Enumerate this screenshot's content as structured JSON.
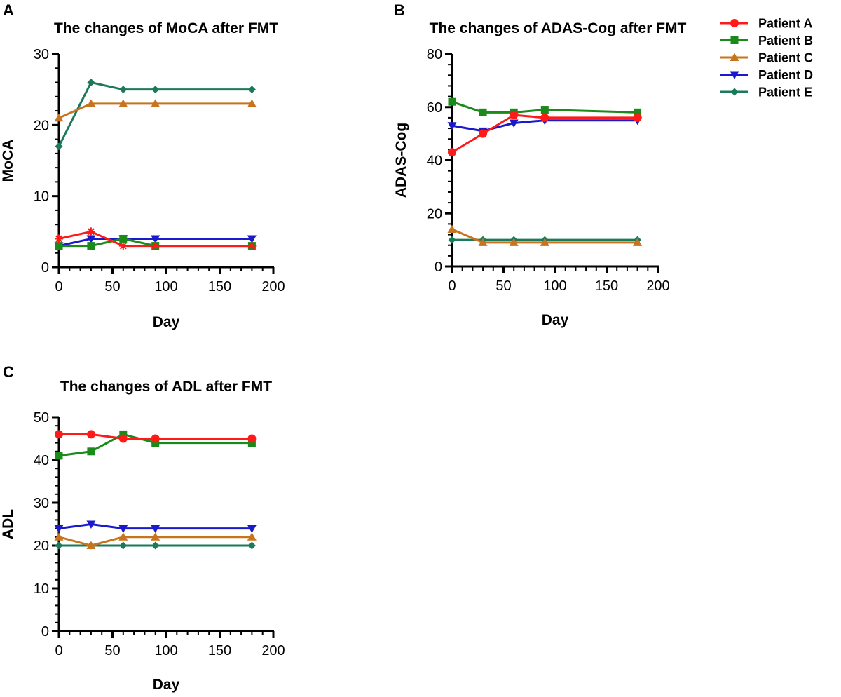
{
  "figure": {
    "legend": {
      "entries": [
        {
          "name": "Patient A",
          "color": "#ff1a1a",
          "marker": "circle"
        },
        {
          "name": "Patient B",
          "color": "#1a8a1a",
          "marker": "square"
        },
        {
          "name": "Patient C",
          "color": "#c8731e",
          "marker": "triangle-up"
        },
        {
          "name": "Patient D",
          "color": "#1a1acc",
          "marker": "triangle-down"
        },
        {
          "name": "Patient E",
          "color": "#1a7a5a",
          "marker": "diamond"
        }
      ]
    }
  },
  "chart_data": [
    {
      "panel": "A",
      "type": "line",
      "title": "The changes of MoCA after FMT",
      "xlabel": "Day",
      "ylabel": "MoCA",
      "xlim": [
        0,
        200
      ],
      "ylim": [
        0,
        30
      ],
      "xticks": [
        0,
        50,
        100,
        150,
        200
      ],
      "yticks": [
        0,
        10,
        20,
        30
      ],
      "x": [
        0,
        30,
        60,
        90,
        180
      ],
      "series": [
        {
          "name": "Patient A",
          "values": [
            4,
            5,
            3,
            3,
            3
          ],
          "marker": "asterisk"
        },
        {
          "name": "Patient B",
          "values": [
            3,
            3,
            4,
            3,
            3
          ]
        },
        {
          "name": "Patient C",
          "values": [
            21,
            23,
            23,
            23,
            23
          ]
        },
        {
          "name": "Patient D",
          "values": [
            3,
            4,
            4,
            4,
            4
          ]
        },
        {
          "name": "Patient E",
          "values": [
            17,
            26,
            25,
            25,
            25
          ]
        }
      ]
    },
    {
      "panel": "B",
      "type": "line",
      "title": "The changes of ADAS-Cog after FMT",
      "xlabel": "Day",
      "ylabel": "ADAS-Cog",
      "xlim": [
        0,
        200
      ],
      "ylim": [
        0,
        80
      ],
      "xticks": [
        0,
        50,
        100,
        150,
        200
      ],
      "yticks": [
        0,
        20,
        40,
        60,
        80
      ],
      "x": [
        0,
        30,
        60,
        90,
        180
      ],
      "series": [
        {
          "name": "Patient A",
          "values": [
            43,
            50,
            57,
            56,
            56
          ]
        },
        {
          "name": "Patient B",
          "values": [
            62,
            58,
            58,
            59,
            58
          ]
        },
        {
          "name": "Patient C",
          "values": [
            14,
            9,
            9,
            9,
            9
          ]
        },
        {
          "name": "Patient D",
          "values": [
            53,
            51,
            54,
            55,
            55
          ]
        },
        {
          "name": "Patient E",
          "values": [
            10,
            10,
            10,
            10,
            10
          ]
        }
      ]
    },
    {
      "panel": "C",
      "type": "line",
      "title": "The changes of ADL after FMT",
      "xlabel": "Day",
      "ylabel": "ADL",
      "xlim": [
        0,
        200
      ],
      "ylim": [
        0,
        50
      ],
      "xticks": [
        0,
        50,
        100,
        150,
        200
      ],
      "yticks": [
        0,
        10,
        20,
        30,
        40,
        50
      ],
      "x": [
        0,
        30,
        60,
        90,
        180
      ],
      "series": [
        {
          "name": "Patient A",
          "values": [
            46,
            46,
            45,
            45,
            45
          ]
        },
        {
          "name": "Patient B",
          "values": [
            41,
            42,
            46,
            44,
            44
          ]
        },
        {
          "name": "Patient C",
          "values": [
            22,
            20,
            22,
            22,
            22
          ]
        },
        {
          "name": "Patient D",
          "values": [
            24,
            25,
            24,
            24,
            24
          ]
        },
        {
          "name": "Patient E",
          "values": [
            20,
            20,
            20,
            20,
            20
          ]
        }
      ]
    }
  ]
}
